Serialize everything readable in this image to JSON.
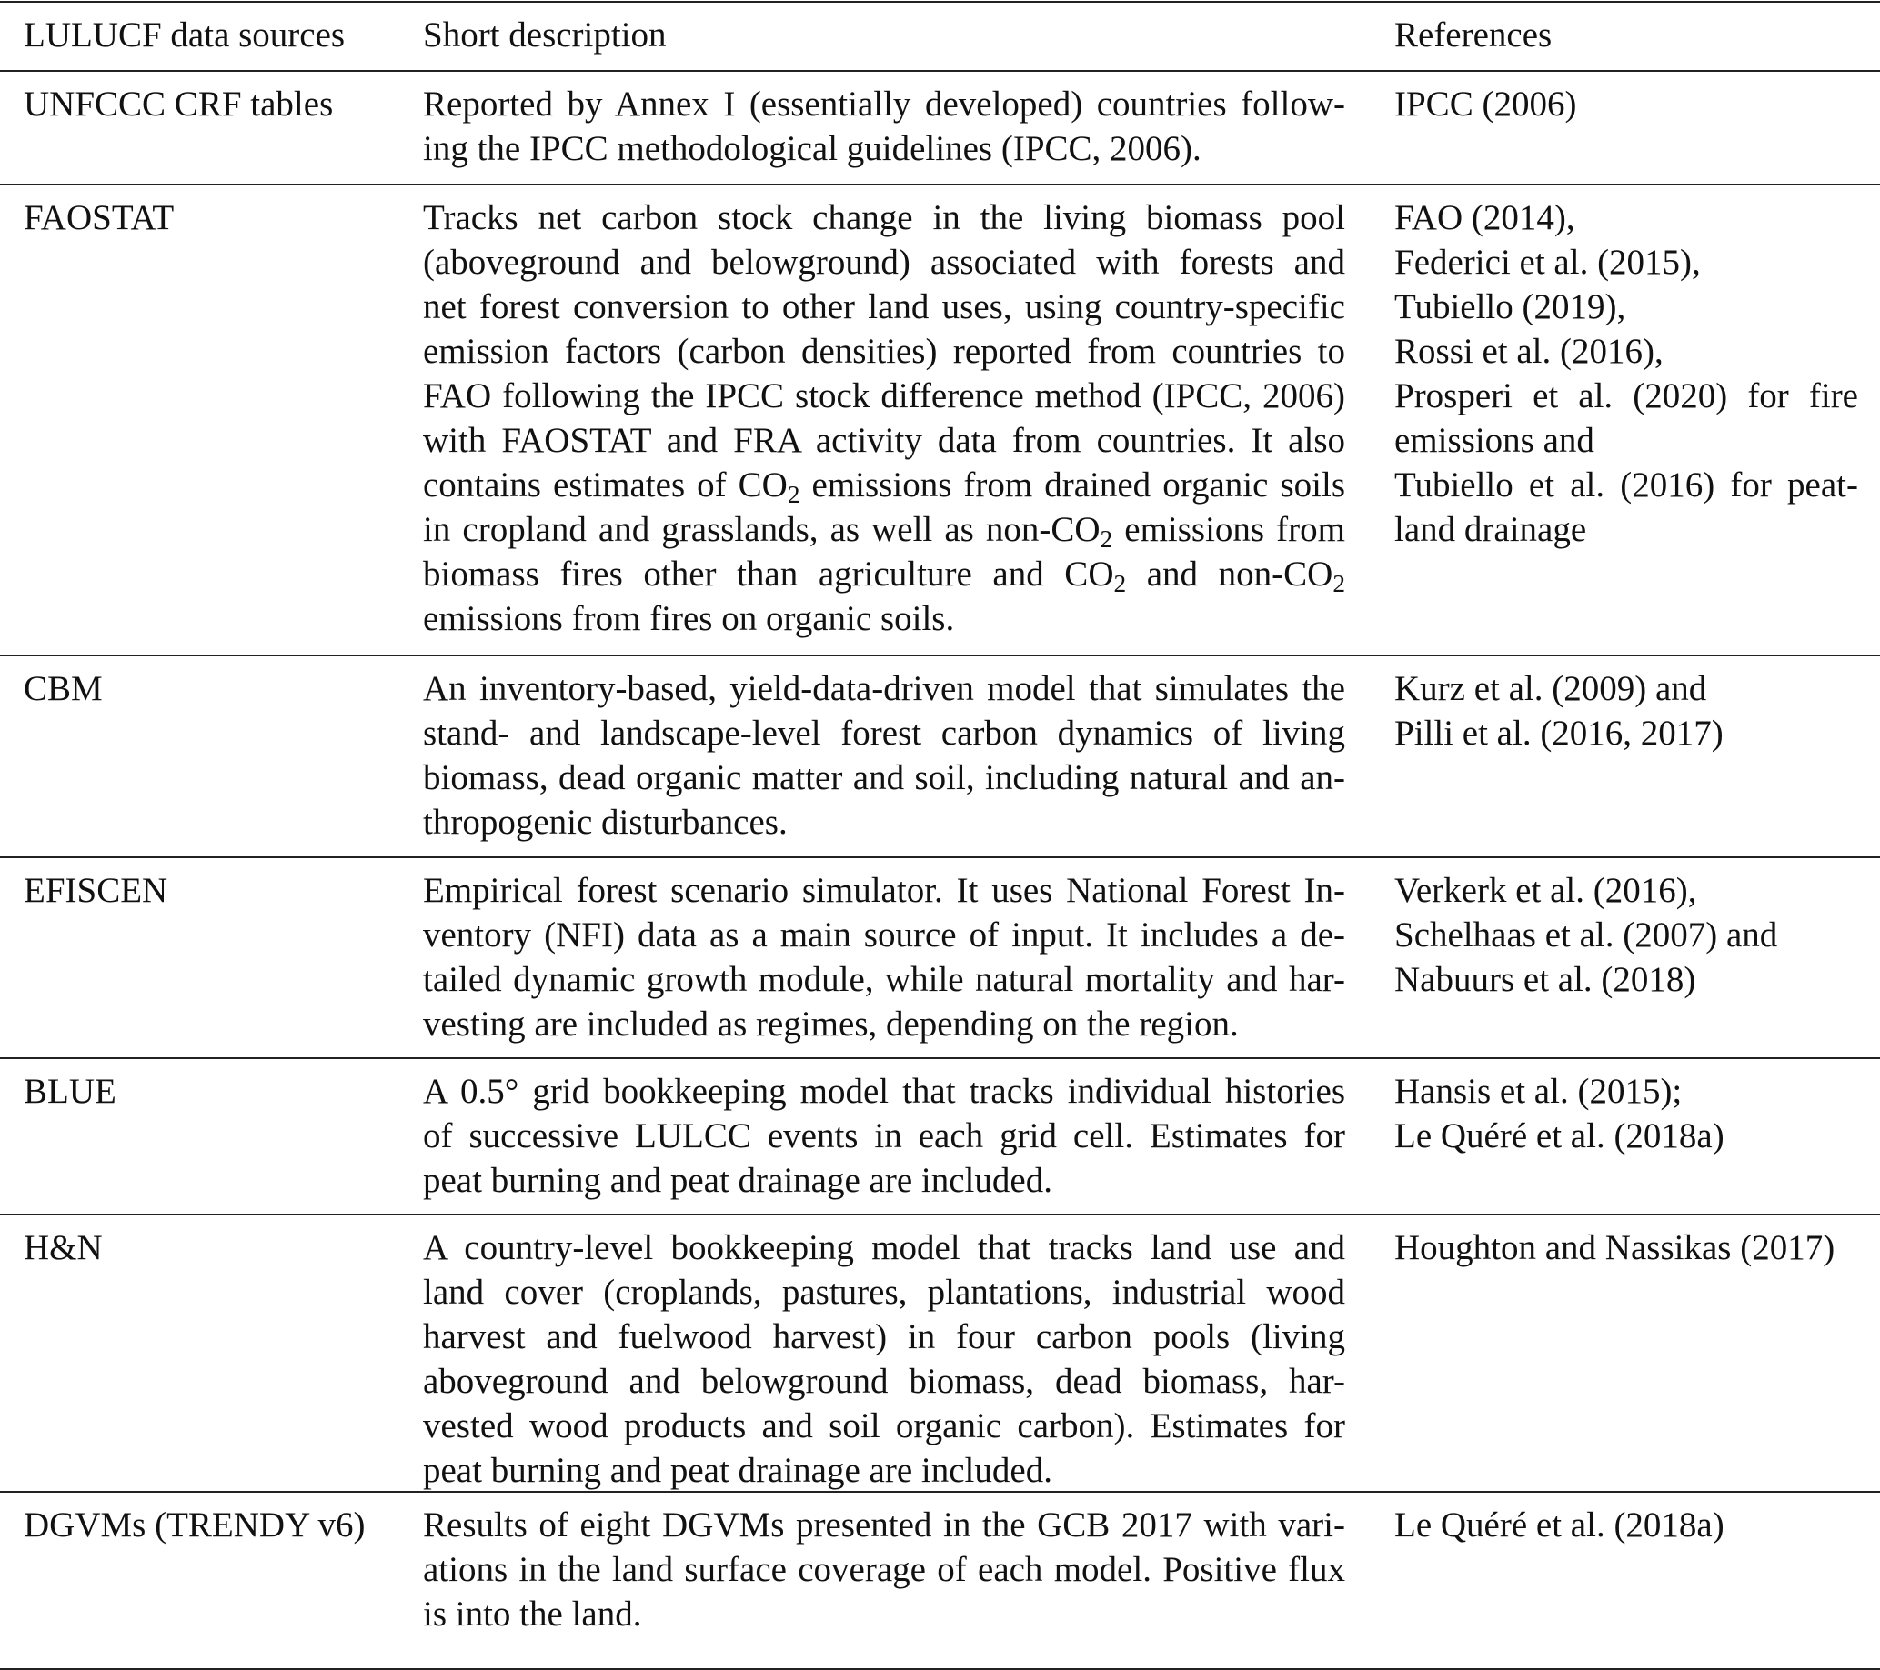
{
  "header": {
    "source": "LULUCF data sources",
    "description": "Short description",
    "references": "References"
  },
  "rows": [
    {
      "source": "UNFCCC CRF tables",
      "description": [
        [
          "Reported by Annex I (essentially developed) countries follow-"
        ],
        [
          "ing the IPCC methodological guidelines (IPCC, 2006)."
        ]
      ],
      "references": [
        "IPCC (2006)"
      ]
    },
    {
      "source": "FAOSTAT",
      "description": [
        [
          "Tracks net carbon stock change in the living biomass pool"
        ],
        [
          "(aboveground and belowground) associated with forests and"
        ],
        [
          "net forest conversion to other land uses, using country-specific"
        ],
        [
          "emission factors (carbon densities) reported from countries to"
        ],
        [
          "FAO following the IPCC stock difference method (IPCC, 2006)"
        ],
        [
          "with FAOSTAT and FRA activity data from countries. It also"
        ],
        [
          "contains estimates of CO",
          {
            "sub": "2"
          },
          " emissions from drained organic soils"
        ],
        [
          "in cropland and grasslands, as well as non-CO",
          {
            "sub": "2"
          },
          " emissions from"
        ],
        [
          "biomass fires other than agriculture and CO",
          {
            "sub": "2"
          },
          " and non-CO",
          {
            "sub": "2"
          }
        ],
        [
          "emissions from fires on organic soils."
        ]
      ],
      "references": [
        "FAO (2014),",
        "Federici et al. (2015),",
        "Tubiello (2019),",
        "Rossi et al. (2016),",
        "Prosperi et al. (2020) for fire",
        "emissions and",
        "Tubiello et al. (2016) for peat-",
        "land drainage"
      ]
    },
    {
      "source": "CBM",
      "description": [
        [
          "An inventory-based, yield-data-driven model that simulates the"
        ],
        [
          "stand- and landscape-level forest carbon dynamics of living"
        ],
        [
          "biomass, dead organic matter and soil, including natural and an-"
        ],
        [
          "thropogenic disturbances."
        ]
      ],
      "references": [
        "Kurz et al. (2009) and",
        "Pilli et al. (2016, 2017)"
      ]
    },
    {
      "source": "EFISCEN",
      "description": [
        [
          "Empirical forest scenario simulator. It uses National Forest In-"
        ],
        [
          "ventory (NFI) data as a main source of input. It includes a de-"
        ],
        [
          "tailed dynamic growth module, while natural mortality and har-"
        ],
        [
          "vesting are included as regimes, depending on the region."
        ]
      ],
      "references": [
        "Verkerk et al. (2016),",
        "Schelhaas et al. (2007) and",
        "Nabuurs et al. (2018)"
      ]
    },
    {
      "source": "BLUE",
      "description": [
        [
          "A 0.5° grid bookkeeping model that tracks individual histories"
        ],
        [
          "of successive LULCC events in each grid cell. Estimates for"
        ],
        [
          "peat burning and peat drainage are included."
        ]
      ],
      "references": [
        "Hansis et al. (2015);",
        "Le Quéré et al. (2018a)"
      ]
    },
    {
      "source": "H&N",
      "description": [
        [
          "A country-level bookkeeping model that tracks land use and"
        ],
        [
          "land cover (croplands, pastures, plantations, industrial wood"
        ],
        [
          "harvest and fuelwood harvest) in four carbon pools (living"
        ],
        [
          "aboveground and belowground biomass, dead biomass, har-"
        ],
        [
          "vested wood products and soil organic carbon). Estimates for"
        ],
        [
          "peat burning and peat drainage are included."
        ]
      ],
      "references": [
        "Houghton and Nassikas (2017)"
      ]
    },
    {
      "source": "DGVMs (TRENDY v6)",
      "description": [
        [
          "Results of eight DGVMs presented in the GCB 2017 with vari-"
        ],
        [
          "ations in the land surface coverage of each model. Positive flux"
        ],
        [
          "is into the land."
        ]
      ],
      "references": [
        "Le Quéré et al. (2018a)"
      ]
    }
  ]
}
